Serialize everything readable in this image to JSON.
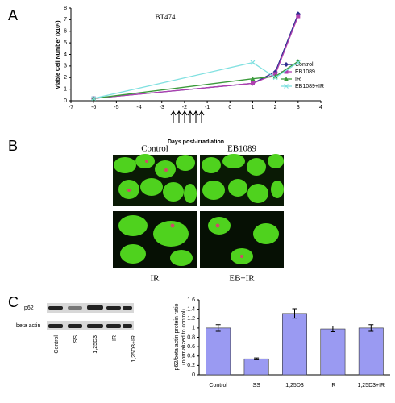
{
  "panels": {
    "labels": [
      "A",
      "B",
      "C"
    ]
  },
  "chart_data": [
    {
      "type": "line",
      "title": "BT474",
      "xlabel": "Days post-irradiation",
      "ylabel": "Viable Cell Number (x10⁶)",
      "x": [
        -6,
        1,
        2,
        3
      ],
      "xlim": [
        -7,
        4
      ],
      "xticks": [
        -7,
        -6,
        -5,
        -4,
        -3,
        -2,
        -1,
        0,
        1,
        2,
        3,
        4
      ],
      "ylim": [
        0,
        8
      ],
      "yticks": [
        0,
        1,
        2,
        3,
        4,
        5,
        6,
        7,
        8
      ],
      "legend": "right",
      "series": [
        {
          "name": "Control",
          "color": "#2e2e8f",
          "marker": "diamond",
          "values": [
            0.2,
            1.5,
            2.5,
            7.5
          ]
        },
        {
          "name": "EB1089",
          "color": "#b03fb0",
          "marker": "square",
          "values": [
            0.2,
            1.5,
            2.3,
            7.3
          ]
        },
        {
          "name": "IR",
          "color": "#3a9a3a",
          "marker": "triangle",
          "values": [
            0.2,
            1.9,
            2.1,
            3.4
          ]
        },
        {
          "name": "EB1089+IR",
          "color": "#7fe0e0",
          "marker": "star",
          "values": [
            0.2,
            3.3,
            2.0,
            3.3
          ]
        }
      ]
    },
    {
      "type": "bar",
      "ylabel": [
        "p62/beta actin protein ratio",
        "(normalized to control)"
      ],
      "categories": [
        "Control",
        "SS",
        "1,25D3",
        "IR",
        "1,25D3+IR"
      ],
      "values": [
        1.0,
        0.34,
        1.31,
        0.98,
        1.0
      ],
      "errors": [
        0.07,
        0.02,
        0.1,
        0.06,
        0.07
      ],
      "color": "#9a9af2",
      "ylim": [
        0,
        1.6
      ],
      "yticks": [
        0,
        0.2,
        0.4,
        0.6,
        0.8,
        1,
        1.2,
        1.4,
        1.6
      ]
    }
  ],
  "micrographs": {
    "labels": [
      "Control",
      "EB1089",
      "IR",
      "EB+IR"
    ]
  },
  "blot": {
    "rows": [
      "p62",
      "beta actin"
    ],
    "lanes": [
      "Control",
      "SS",
      "1,25D3",
      "IR",
      "1,25D3+IR"
    ]
  }
}
